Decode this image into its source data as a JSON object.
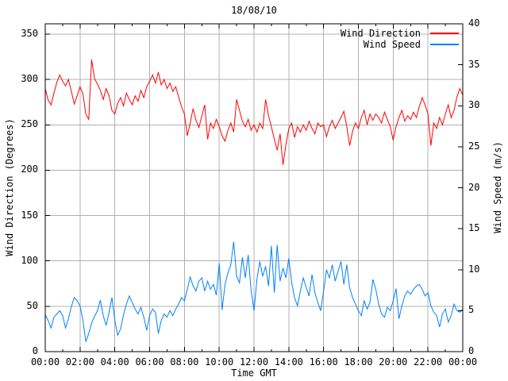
{
  "title": "18/08/10",
  "colors": {
    "background": "#ffffff",
    "border": "#000000",
    "grid": "#b0b0b0",
    "text": "#000000",
    "wind_direction": "#ff0000",
    "wind_speed": "#0080ff"
  },
  "chart_data": {
    "type": "line",
    "title": "18/08/10",
    "xlabel": "Time GMT",
    "y1_label": "Wind Direction (Degrees)",
    "y2_label": "Wind Speed (m/s)",
    "grid": true,
    "legend_position": "top-right-inside",
    "x_ticks": [
      "00:00",
      "02:00",
      "04:00",
      "06:00",
      "08:00",
      "10:00",
      "12:00",
      "14:00",
      "16:00",
      "18:00",
      "20:00",
      "22:00",
      "00:00"
    ],
    "x_minor_tick_hours": 1,
    "x_range_hours": [
      0,
      24
    ],
    "y1_ticks": [
      0,
      50,
      100,
      150,
      200,
      250,
      300,
      350
    ],
    "y1_range": [
      0,
      361
    ],
    "y2_ticks": [
      0,
      5,
      10,
      15,
      20,
      25,
      30,
      35,
      40
    ],
    "y2_range": [
      0,
      40
    ],
    "sample_interval_minutes": 10,
    "series": [
      {
        "name": "Wind Direction",
        "axis": "y1",
        "color": "#ff0000",
        "values": [
          290,
          277,
          272,
          285,
          297,
          305,
          298,
          293,
          300,
          287,
          273,
          282,
          292,
          284,
          262,
          256,
          322,
          301,
          295,
          288,
          278,
          290,
          282,
          266,
          262,
          274,
          280,
          271,
          285,
          278,
          272,
          282,
          276,
          288,
          280,
          292,
          298,
          305,
          296,
          308,
          294,
          300,
          290,
          296,
          287,
          292,
          281,
          270,
          262,
          238,
          252,
          268,
          255,
          247,
          260,
          272,
          234,
          252,
          246,
          256,
          248,
          238,
          232,
          244,
          252,
          242,
          278,
          266,
          254,
          248,
          256,
          244,
          250,
          242,
          252,
          246,
          278,
          260,
          248,
          234,
          222,
          240,
          206,
          228,
          246,
          252,
          236,
          248,
          242,
          250,
          244,
          254,
          246,
          240,
          252,
          248,
          250,
          237,
          248,
          255,
          246,
          252,
          258,
          265,
          248,
          227,
          243,
          252,
          246,
          258,
          266,
          250,
          262,
          255,
          262,
          258,
          252,
          264,
          256,
          248,
          233,
          248,
          258,
          266,
          254,
          260,
          256,
          264,
          258,
          270,
          280,
          272,
          262,
          227,
          252,
          246,
          258,
          250,
          262,
          272,
          258,
          266,
          281,
          290,
          283
        ]
      },
      {
        "name": "Wind Speed",
        "axis": "y2",
        "color": "#0080ff",
        "values": [
          4.5,
          3.8,
          2.9,
          4.2,
          4.6,
          5.0,
          4.4,
          2.9,
          4.0,
          5.5,
          6.6,
          6.2,
          5.6,
          3.8,
          1.2,
          2.2,
          3.5,
          4.3,
          5.0,
          6.3,
          4.4,
          3.2,
          4.8,
          6.6,
          3.8,
          2.0,
          2.8,
          4.5,
          5.8,
          6.8,
          6.0,
          5.2,
          4.6,
          5.4,
          4.2,
          2.6,
          4.4,
          5.2,
          4.8,
          2.2,
          3.8,
          4.6,
          4.2,
          5.0,
          4.4,
          5.2,
          5.8,
          6.6,
          6.2,
          7.6,
          9.1,
          8.0,
          7.4,
          8.6,
          9.0,
          7.4,
          8.6,
          7.6,
          8.2,
          6.9,
          10.8,
          5.1,
          8.2,
          9.6,
          10.6,
          13.4,
          9.2,
          8.4,
          11.5,
          9.0,
          11.8,
          7.5,
          5.0,
          8.8,
          11.0,
          9.2,
          10.4,
          8.0,
          12.9,
          7.2,
          13.0,
          8.6,
          10.2,
          9.0,
          11.4,
          8.4,
          6.6,
          5.6,
          7.4,
          9.0,
          7.8,
          6.8,
          9.4,
          7.2,
          6.0,
          5.0,
          7.4,
          10.0,
          9.0,
          10.6,
          8.6,
          9.8,
          11.0,
          8.2,
          10.6,
          7.8,
          6.6,
          5.8,
          5.0,
          4.4,
          6.2,
          5.2,
          6.0,
          8.8,
          7.6,
          5.8,
          4.6,
          4.2,
          5.4,
          5.0,
          6.2,
          7.7,
          4.0,
          5.6,
          6.8,
          7.4,
          7.0,
          7.6,
          8.0,
          8.2,
          7.6,
          6.8,
          7.2,
          5.6,
          4.8,
          4.4,
          3.0,
          4.6,
          5.2,
          3.6,
          4.4,
          5.8,
          5.0,
          4.8,
          5.2
        ]
      }
    ]
  }
}
